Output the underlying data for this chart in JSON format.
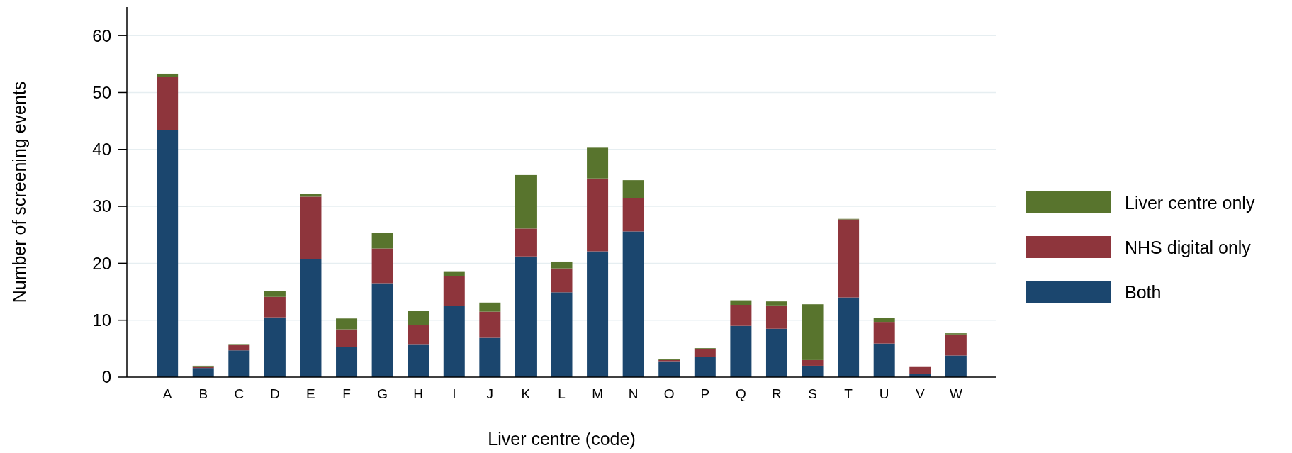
{
  "chart_data": {
    "type": "bar",
    "stacked": true,
    "xlabel": "Liver centre (code)",
    "ylabel": "Number of screening events",
    "categories": [
      "A",
      "B",
      "C",
      "D",
      "E",
      "F",
      "G",
      "H",
      "I",
      "J",
      "K",
      "L",
      "M",
      "N",
      "O",
      "P",
      "Q",
      "R",
      "S",
      "T",
      "U",
      "V",
      "W"
    ],
    "series": [
      {
        "name": "Both",
        "color": "#1b466e",
        "values": [
          43.4,
          1.6,
          4.7,
          10.5,
          20.7,
          5.3,
          16.5,
          5.8,
          12.5,
          6.9,
          21.2,
          14.9,
          22.1,
          25.6,
          2.8,
          3.5,
          9.0,
          8.5,
          2.0,
          14.0,
          5.9,
          0.6,
          3.8
        ]
      },
      {
        "name": "NHS digital only",
        "color": "#8e353c",
        "values": [
          9.3,
          0.3,
          0.9,
          3.6,
          11.0,
          3.1,
          6.1,
          3.3,
          5.2,
          4.6,
          4.9,
          4.2,
          12.8,
          5.9,
          0.2,
          1.5,
          3.7,
          4.1,
          1.0,
          13.7,
          3.8,
          1.3,
          3.7
        ]
      },
      {
        "name": "Liver centre only",
        "color": "#58742d",
        "values": [
          0.6,
          0.1,
          0.2,
          1.0,
          0.5,
          1.9,
          2.7,
          2.6,
          0.9,
          1.6,
          9.4,
          1.2,
          5.4,
          3.1,
          0.2,
          0.1,
          0.8,
          0.7,
          9.8,
          0.1,
          0.7,
          0,
          0.2
        ]
      }
    ],
    "ylim": [
      0,
      65
    ],
    "yticks": [
      0,
      10,
      20,
      30,
      40,
      50,
      60
    ],
    "grid": "y",
    "legend": "right"
  }
}
